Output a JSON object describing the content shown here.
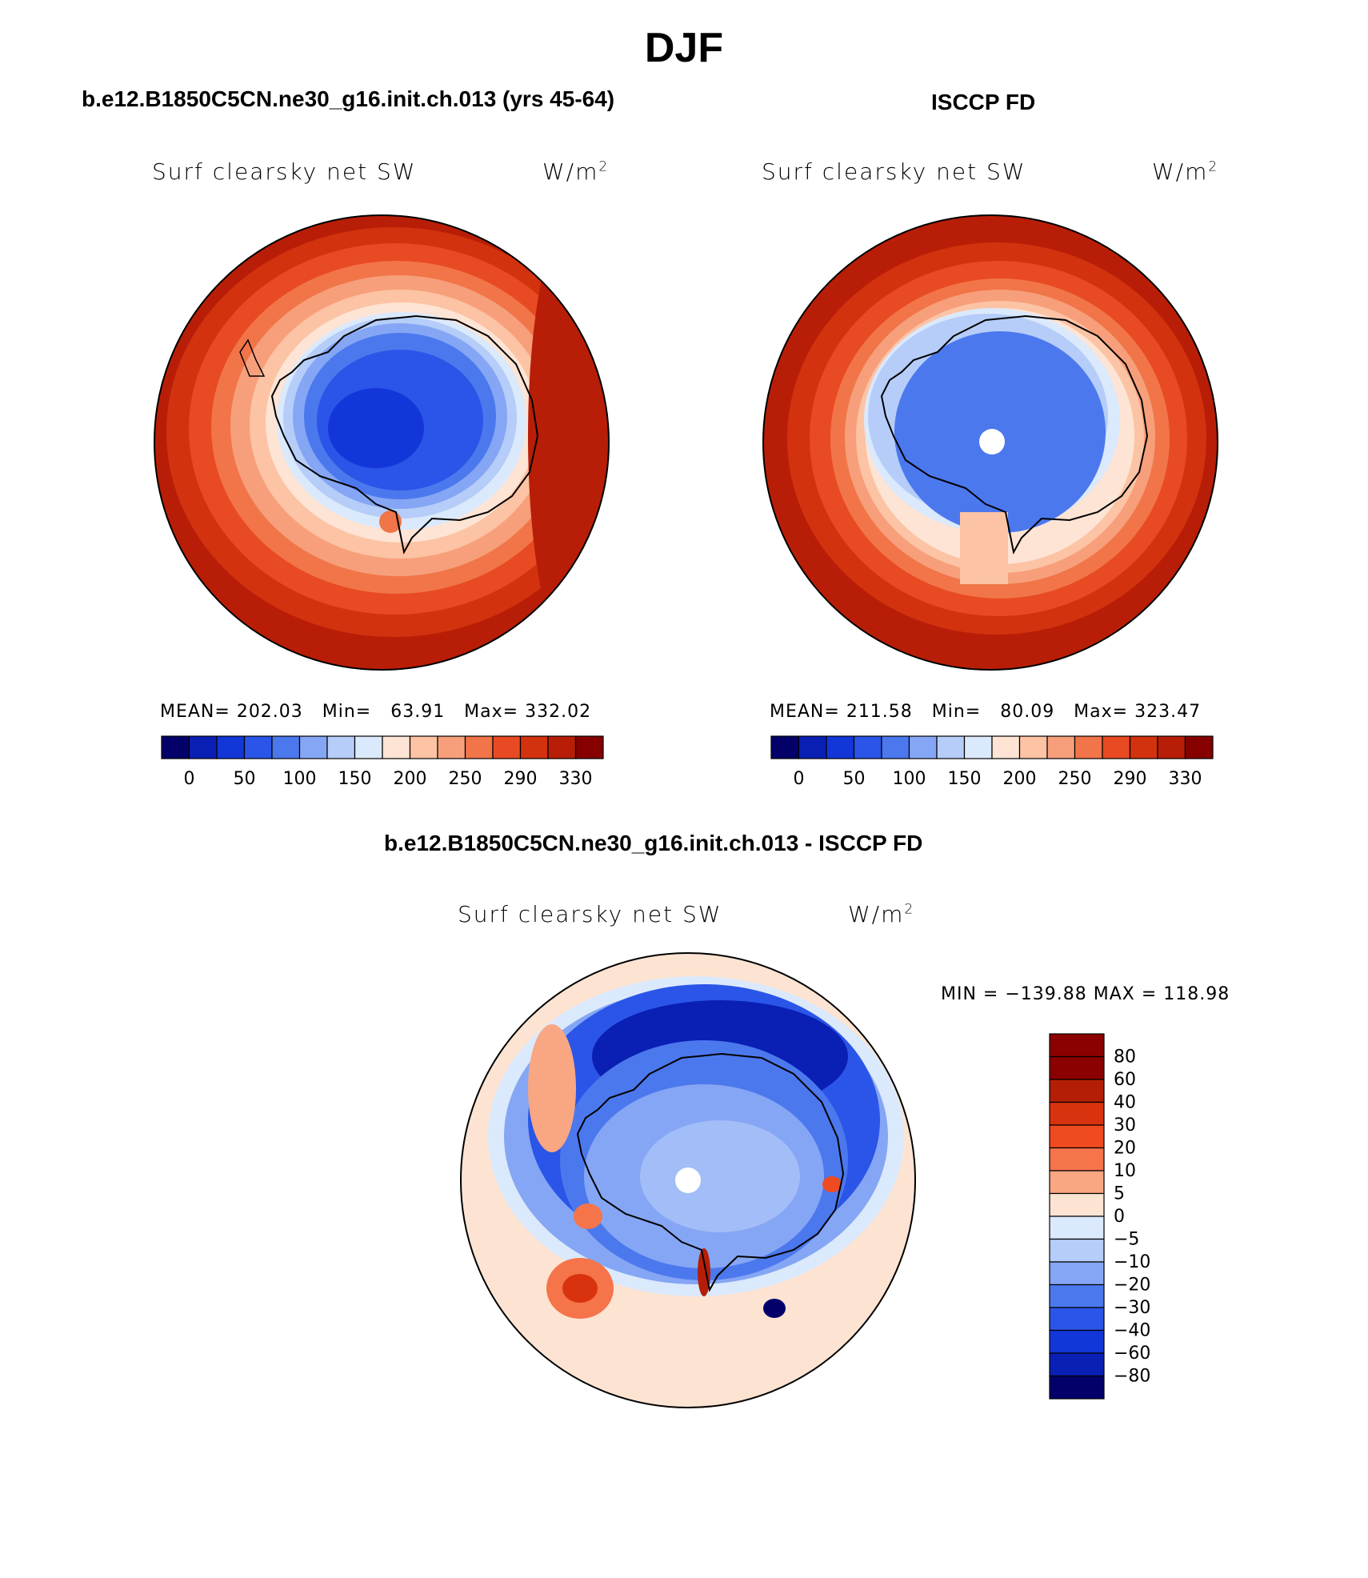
{
  "season": "DJF",
  "units_text": "W/m",
  "units_exp": "2",
  "panels": [
    {
      "id": "model",
      "title": "b.e12.B1850C5CN.ne30_g16.init.ch.013 (yrs 45-64)",
      "subtitle": "Surf clearsky net SW",
      "stats": "MEAN= 202.03   Min=   63.91   Max= 332.02",
      "has_pole_hole": false
    },
    {
      "id": "obs",
      "title": "ISCCP FD",
      "subtitle": "Surf clearsky net SW",
      "stats": "MEAN= 211.58   Min=   80.09   Max= 323.47",
      "has_pole_hole": true
    }
  ],
  "diff_panel": {
    "title": "b.e12.B1850C5CN.ne30_g16.init.ch.013 - ISCCP FD",
    "subtitle": "Surf clearsky net SW",
    "minmax": "MIN = −139.88 MAX = 118.98"
  },
  "chart_data": [
    {
      "type": "heatmap",
      "title": "b.e12.B1850C5CN.ne30_g16.init.ch.013 (yrs 45-64)",
      "subtitle": "Surf clearsky net SW",
      "units": "W/m2",
      "projection": "south polar stereographic",
      "mean": 202.03,
      "min": 63.91,
      "max": 332.02,
      "colorbar_labels": [
        "0",
        "50",
        "100",
        "150",
        "200",
        "250",
        "290",
        "330"
      ],
      "colorbar_colors": [
        "#03006a",
        "#0a1fb4",
        "#1236d8",
        "#2a55e8",
        "#4c78ee",
        "#85a6f4",
        "#b5cdf8",
        "#dbe9fc",
        "#fde4d4",
        "#fcc3a4",
        "#f79f7b",
        "#f17548",
        "#e84a23",
        "#d3320e",
        "#b81e07",
        "#870000"
      ]
    },
    {
      "type": "heatmap",
      "title": "ISCCP FD",
      "subtitle": "Surf clearsky net SW",
      "units": "W/m2",
      "projection": "south polar stereographic",
      "mean": 211.58,
      "min": 80.09,
      "max": 323.47,
      "colorbar_labels": [
        "0",
        "50",
        "100",
        "150",
        "200",
        "250",
        "290",
        "330"
      ],
      "colorbar_colors": [
        "#03006a",
        "#0a1fb4",
        "#1236d8",
        "#2a55e8",
        "#4c78ee",
        "#85a6f4",
        "#b5cdf8",
        "#dbe9fc",
        "#fde4d4",
        "#fcc3a4",
        "#f79f7b",
        "#f17548",
        "#e84a23",
        "#d3320e",
        "#b81e07",
        "#870000"
      ]
    },
    {
      "type": "heatmap",
      "title": "b.e12.B1850C5CN.ne30_g16.init.ch.013 - ISCCP FD",
      "subtitle": "Surf clearsky net SW",
      "units": "W/m2",
      "projection": "south polar stereographic",
      "min": -139.88,
      "max": 118.98,
      "colorbar_labels": [
        "80",
        "60",
        "40",
        "30",
        "20",
        "10",
        "5",
        "0",
        "−5",
        "−10",
        "−20",
        "−30",
        "−40",
        "−60",
        "−80"
      ],
      "colorbar_colors": [
        "#8b0000",
        "#b41e06",
        "#d8330e",
        "#f04a20",
        "#f5744a",
        "#f9a682",
        "#fde3d2",
        "#dbe9fc",
        "#b5cdf8",
        "#85a6f4",
        "#4c78ee",
        "#2a55e8",
        "#1236d8",
        "#0a1fb4",
        "#03006a"
      ]
    }
  ]
}
